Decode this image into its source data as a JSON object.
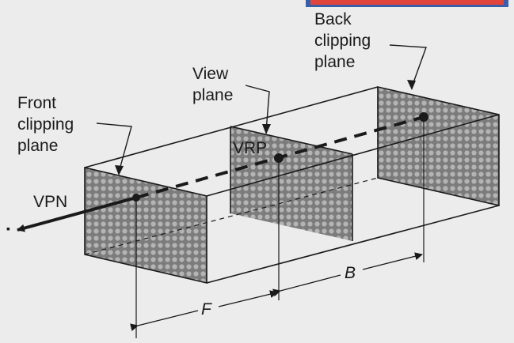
{
  "labels": {
    "back_clipping_plane": [
      "Back",
      "clipping",
      "plane"
    ],
    "view_plane": [
      "View",
      "plane"
    ],
    "front_clipping_plane": [
      "Front",
      "clipping",
      "plane"
    ],
    "vrp": "VRP",
    "vpn": "VPN",
    "f": "F",
    "b": "B"
  },
  "colors": {
    "background": "#ececec",
    "ink": "#1a1a1a",
    "plane_fill": "#8a8a8a",
    "top_banner": "#e0443a"
  }
}
